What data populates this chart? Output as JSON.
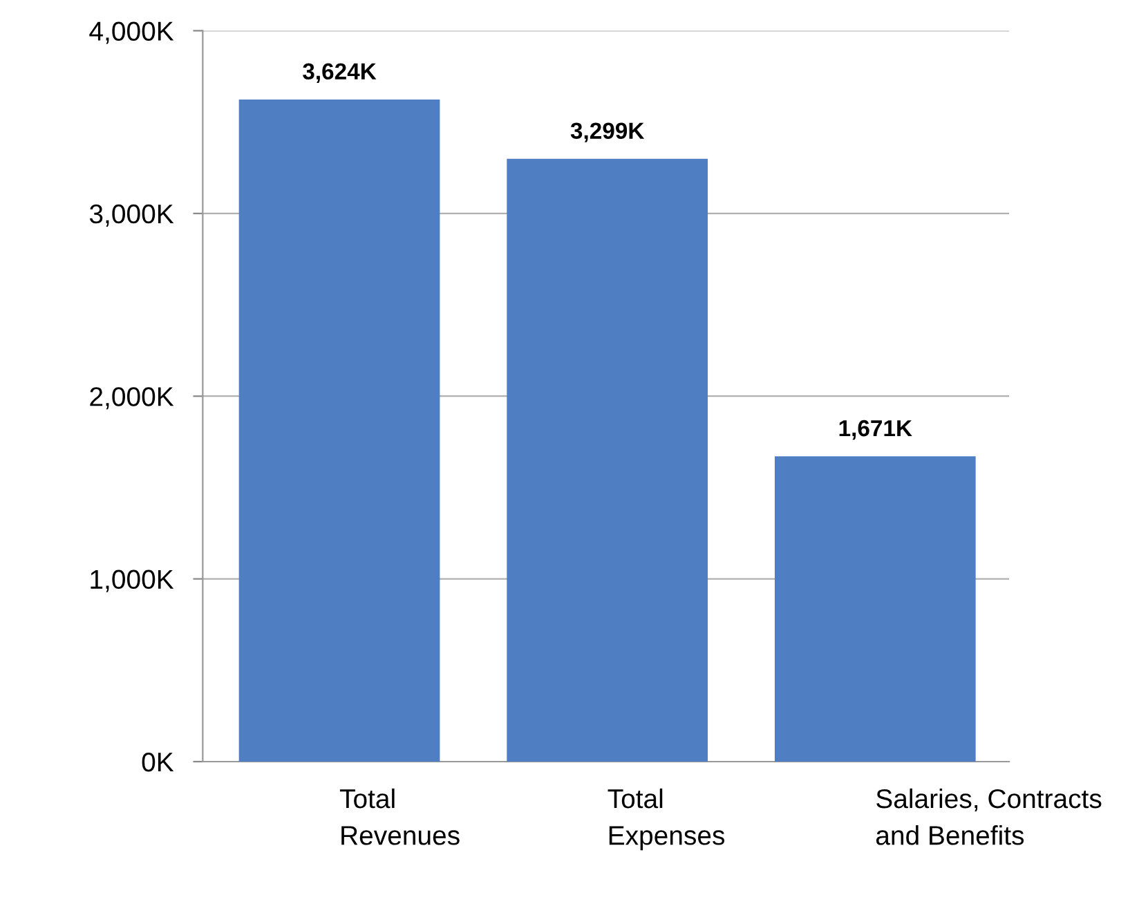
{
  "chart_data": {
    "type": "bar",
    "categories": [
      "Total\nRevenues",
      "Total\nExpenses",
      "Salaries, Contracts\nand Benefits"
    ],
    "values": [
      3624,
      3299,
      1671
    ],
    "value_labels": [
      "3,624K",
      "3,299K",
      "1,671K"
    ],
    "color": "#4f7fc2",
    "ylim": [
      0,
      4000
    ],
    "yticks": [
      {
        "value": 0,
        "label": "0K"
      },
      {
        "value": 1000,
        "label": "1,000K"
      },
      {
        "value": 2000,
        "label": "2,000K"
      },
      {
        "value": 3000,
        "label": "3,000K"
      },
      {
        "value": 4000,
        "label": "4,000K"
      }
    ],
    "grid": "y"
  }
}
